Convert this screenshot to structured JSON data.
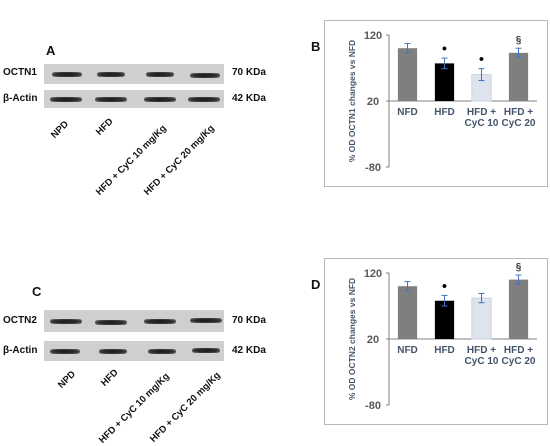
{
  "panels": {
    "A": {
      "letter": "A",
      "target_label": "OCTN1",
      "target_kda": "70 KDa",
      "actin_label": "β-Actin",
      "actin_kda": "42 KDa",
      "lanes": [
        "NPD",
        "HFD",
        "HFD + CyC 10 mg/Kg",
        "HFD + CyC 20 mg/Kg"
      ]
    },
    "B": {
      "letter": "B"
    },
    "C": {
      "letter": "C",
      "target_label": "OCTN2",
      "target_kda": "70 KDa",
      "actin_label": "β-Actin",
      "actin_kda": "42 KDa",
      "lanes": [
        "NPD",
        "HFD",
        "HFD + CyC 10 mg/Kg",
        "HFD + CyC 20 mg/Kg"
      ]
    },
    "D": {
      "letter": "D"
    }
  },
  "colors": {
    "NFD": "#7f7f7f",
    "HFD": "#000000",
    "HFD + CyC 10": "#dde4ee",
    "HFD + CyC 20": "#7f7f7f",
    "axis": "#808080",
    "ylabel": "#44546a"
  },
  "chart_data": [
    {
      "type": "bar",
      "panel": "B",
      "ylabel": "% OD OCTN1 changes vs NFD",
      "ylim": [
        -80,
        120
      ],
      "yticks": [
        "120",
        "20",
        "-80"
      ],
      "categories": [
        "NFD",
        "HFD",
        "HFD + CyC 10",
        "HFD + CyC 20"
      ],
      "category_lines": [
        [
          "NFD"
        ],
        [
          "HFD"
        ],
        [
          "HFD +",
          "CyC 10"
        ],
        [
          "HFD +",
          "CyC 20"
        ]
      ],
      "values": [
        100,
        77,
        60,
        93
      ],
      "errors": [
        7,
        8,
        9,
        7
      ],
      "markers": [
        "",
        "•",
        "•",
        "§"
      ],
      "grid": false
    },
    {
      "type": "bar",
      "panel": "D",
      "ylabel": "% OD OCTN2 changes vs NFD",
      "ylim": [
        -80,
        120
      ],
      "yticks": [
        "120",
        "20",
        "-80"
      ],
      "categories": [
        "NFD",
        "HFD",
        "HFD + CyC 10",
        "HFD + CyC 20"
      ],
      "category_lines": [
        [
          "NFD"
        ],
        [
          "HFD"
        ],
        [
          "HFD +",
          "CyC 10"
        ],
        [
          "HFD +",
          "CyC 20"
        ]
      ],
      "values": [
        100,
        78,
        82,
        110
      ],
      "errors": [
        7,
        8,
        7,
        7
      ],
      "markers": [
        "",
        "•",
        "",
        "§"
      ],
      "grid": false
    }
  ]
}
